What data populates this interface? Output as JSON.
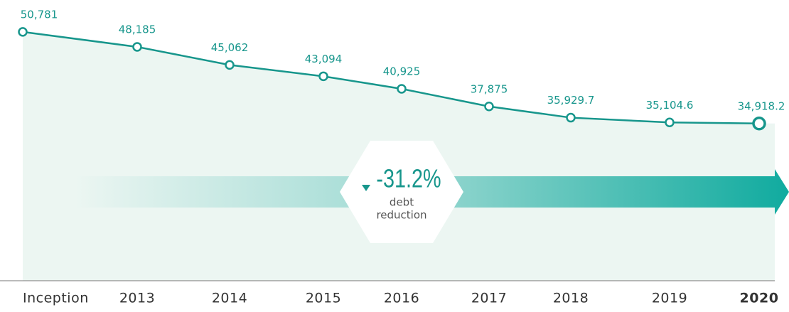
{
  "chart_data": {
    "type": "area",
    "categories": [
      "Inception",
      "2013",
      "2014",
      "2015",
      "2016",
      "2017",
      "2018",
      "2019",
      "2020"
    ],
    "values": [
      50781,
      48185,
      45062,
      43094,
      40925,
      37875,
      35929.7,
      35104.6,
      34918.2
    ],
    "value_labels": [
      "50,781",
      "48,185",
      "45,062",
      "43,094",
      "40,925",
      "37,875",
      "35,929.7",
      "35,104.6",
      "34,918.2"
    ],
    "color": "#17968c",
    "ylim": [
      7700,
      56300
    ],
    "annotation": {
      "value": "-31.2%",
      "lines": [
        "debt",
        "reduction"
      ]
    }
  }
}
